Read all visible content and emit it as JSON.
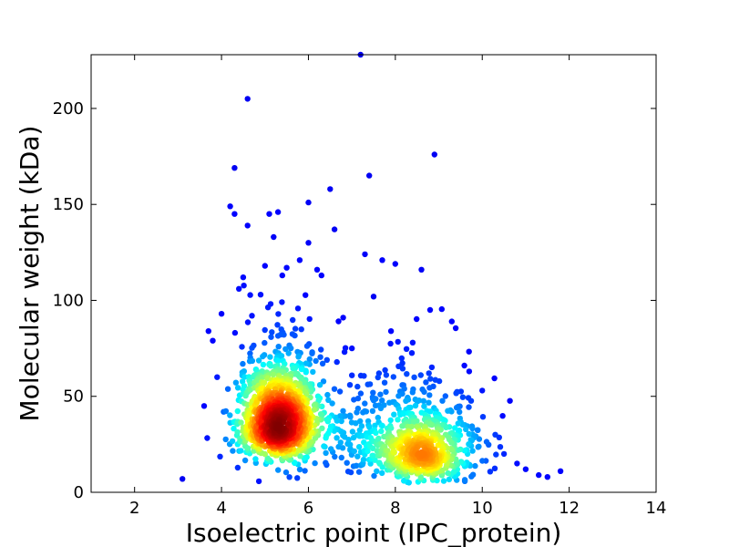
{
  "chart_data": {
    "type": "scatter",
    "xlabel": "Isoelectric point (IPC_protein)",
    "ylabel": "Molecular weight (kDa)",
    "xlim": [
      1,
      14
    ],
    "ylim": [
      0,
      228
    ],
    "x_ticks": [
      2,
      4,
      6,
      8,
      10,
      12,
      14
    ],
    "y_ticks": [
      0,
      50,
      100,
      150,
      200
    ],
    "grid": false,
    "legend": "none",
    "colormap": "jet (point density)",
    "clusters": [
      {
        "center": [
          5.3,
          33
        ],
        "spread": [
          0.45,
          13
        ],
        "count": 1100
      },
      {
        "center": [
          8.6,
          17
        ],
        "spread": [
          0.65,
          9
        ],
        "count": 650
      },
      {
        "center": [
          7.2,
          30
        ],
        "spread": [
          1.2,
          14
        ],
        "count": 250
      }
    ],
    "outliers": [
      [
        3.1,
        7
      ],
      [
        3.6,
        45
      ],
      [
        3.7,
        84
      ],
      [
        3.8,
        79
      ],
      [
        3.9,
        60
      ],
      [
        4.0,
        93
      ],
      [
        4.2,
        149
      ],
      [
        4.3,
        145
      ],
      [
        4.3,
        169
      ],
      [
        4.4,
        106
      ],
      [
        4.5,
        112
      ],
      [
        4.6,
        205
      ],
      [
        4.6,
        139
      ],
      [
        4.7,
        92
      ],
      [
        4.9,
        103
      ],
      [
        5.0,
        118
      ],
      [
        5.1,
        145
      ],
      [
        5.2,
        133
      ],
      [
        5.3,
        146
      ],
      [
        5.4,
        113
      ],
      [
        5.5,
        117
      ],
      [
        5.8,
        121
      ],
      [
        6.0,
        151
      ],
      [
        6.0,
        130
      ],
      [
        6.2,
        116
      ],
      [
        6.3,
        113
      ],
      [
        6.5,
        158
      ],
      [
        6.6,
        137
      ],
      [
        6.8,
        91
      ],
      [
        7.0,
        75
      ],
      [
        7.2,
        228
      ],
      [
        7.3,
        124
      ],
      [
        7.4,
        165
      ],
      [
        7.5,
        102
      ],
      [
        7.7,
        121
      ],
      [
        7.9,
        84
      ],
      [
        8.0,
        119
      ],
      [
        8.4,
        78
      ],
      [
        8.6,
        116
      ],
      [
        8.8,
        95
      ],
      [
        8.9,
        176
      ],
      [
        9.3,
        89
      ],
      [
        9.7,
        63
      ],
      [
        10.0,
        53
      ],
      [
        10.3,
        30
      ],
      [
        10.5,
        20
      ],
      [
        10.8,
        15
      ],
      [
        11.0,
        12
      ],
      [
        11.3,
        9
      ],
      [
        11.5,
        8
      ],
      [
        11.8,
        11
      ]
    ]
  }
}
